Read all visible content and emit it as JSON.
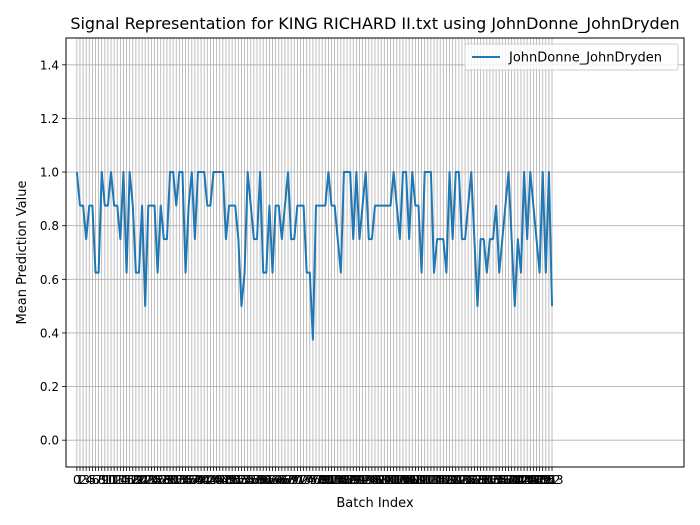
{
  "chart_data": {
    "type": "line",
    "title": "Signal Representation for KING RICHARD II.txt using JohnDonne_JohnDryden",
    "xlabel": "Batch Index",
    "ylabel": "Mean Prediction Value",
    "ylim": [
      -0.1,
      1.5
    ],
    "xlim": [
      -3.5,
      195.5
    ],
    "yticks": [
      0.0,
      0.2,
      0.4,
      0.6,
      0.8,
      1.0,
      1.2,
      1.4
    ],
    "ytick_labels": [
      "0.0",
      "0.2",
      "0.4",
      "0.6",
      "0.8",
      "1.0",
      "1.2",
      "1.4"
    ],
    "grid": true,
    "legend_position": "top-right",
    "x_start": 0,
    "series": [
      {
        "name": "JohnDonne_JohnDryden",
        "color": "#1f77b4",
        "values": [
          1.0,
          0.875,
          0.875,
          0.75,
          0.875,
          0.875,
          0.625,
          0.625,
          1.0,
          0.875,
          0.875,
          1.0,
          0.875,
          0.875,
          0.75,
          1.0,
          0.625,
          1.0,
          0.875,
          0.625,
          0.625,
          0.875,
          0.5,
          0.875,
          0.875,
          0.875,
          0.625,
          0.875,
          0.75,
          0.75,
          1.0,
          1.0,
          0.875,
          1.0,
          1.0,
          0.625,
          0.875,
          1.0,
          0.75,
          1.0,
          1.0,
          1.0,
          0.875,
          0.875,
          1.0,
          1.0,
          1.0,
          1.0,
          0.75,
          0.875,
          0.875,
          0.875,
          0.75,
          0.5,
          0.625,
          1.0,
          0.875,
          0.75,
          0.75,
          1.0,
          0.625,
          0.625,
          0.875,
          0.625,
          0.875,
          0.875,
          0.75,
          0.875,
          1.0,
          0.75,
          0.75,
          0.875,
          0.875,
          0.875,
          0.625,
          0.625,
          0.375,
          0.875,
          0.875,
          0.875,
          0.875,
          1.0,
          0.875,
          0.875,
          0.75,
          0.625,
          1.0,
          1.0,
          1.0,
          0.75,
          1.0,
          0.75,
          0.875,
          1.0,
          0.75,
          0.75,
          0.875,
          0.875,
          0.875,
          0.875,
          0.875,
          0.875,
          1.0,
          0.875,
          0.75,
          1.0,
          1.0,
          0.75,
          1.0,
          0.875,
          0.875,
          0.625,
          1.0,
          1.0,
          1.0,
          0.625,
          0.75,
          0.75,
          0.75,
          0.625,
          1.0,
          0.75,
          1.0,
          1.0,
          0.75,
          0.75,
          0.875,
          1.0,
          0.75,
          0.5,
          0.75,
          0.75,
          0.625,
          0.75,
          0.75,
          0.875,
          0.625,
          0.75,
          0.875,
          1.0,
          0.75,
          0.5,
          0.75,
          0.625,
          1.0,
          0.75,
          1.0,
          0.875,
          0.75,
          0.625,
          1.0,
          0.625,
          1.0,
          0.5
        ]
      }
    ]
  }
}
